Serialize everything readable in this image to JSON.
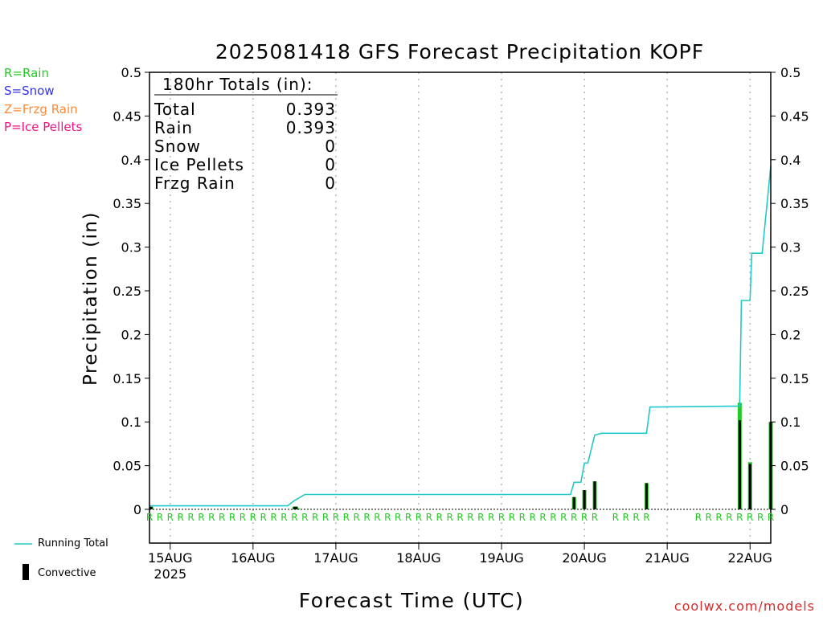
{
  "chart_data": {
    "type": "bar",
    "title": "2025081418 GFS Forecast Precipitation KOPF",
    "xlabel": "Forecast Time (UTC)",
    "ylabel": "Precipitation (in)",
    "ylim": [
      0,
      0.5
    ],
    "y_ticks": [
      0,
      0.05,
      0.1,
      0.15,
      0.2,
      0.25,
      0.3,
      0.35,
      0.4,
      0.45,
      0.5
    ],
    "y_tick_labels": [
      "0",
      "0.05",
      "0.1",
      "0.15",
      "0.2",
      "0.25",
      "0.3",
      "0.35",
      "0.4",
      "0.45",
      "0.5"
    ],
    "x_tick_labels": [
      "15AUG",
      "16AUG",
      "17AUG",
      "18AUG",
      "19AUG",
      "20AUG",
      "21AUG",
      "22AUG"
    ],
    "x_year_label": "2025",
    "x_unit": "forecast hour",
    "xlim": [
      0,
      180
    ],
    "x_day_ticks_hours": [
      6,
      30,
      54,
      78,
      102,
      126,
      150,
      174
    ],
    "grid": "dotted vertical lines at day ticks",
    "legend_keys": [
      {
        "label": "R=Rain",
        "color": "#22cc22"
      },
      {
        "label": "S=Snow",
        "color": "#3333ee"
      },
      {
        "label": "Z=Frzg Rain",
        "color": "#ff8833"
      },
      {
        "label": "P=Ice Pellets",
        "color": "#ee1188"
      }
    ],
    "totals_box": {
      "heading": "180hr Totals (in):",
      "rows": [
        {
          "label": "Total",
          "value": "0.393"
        },
        {
          "label": "Rain",
          "value": "0.393"
        },
        {
          "label": "Snow",
          "value": "0"
        },
        {
          "label": "Ice Pellets",
          "value": "0"
        },
        {
          "label": "Frzg Rain",
          "value": "0"
        }
      ]
    },
    "series": [
      {
        "name": "Running Total",
        "color": "#22c8c8",
        "x": [
          0,
          30,
          40,
          42,
          45,
          102,
          122,
          123,
          124,
          125,
          126,
          127,
          129,
          131,
          132,
          144,
          145,
          168,
          171,
          171.5,
          174,
          174.5,
          177,
          177.5,
          180
        ],
        "y": [
          0.004,
          0.004,
          0.004,
          0.01,
          0.017,
          0.017,
          0.017,
          0.031,
          0.031,
          0.031,
          0.053,
          0.053,
          0.085,
          0.087,
          0.087,
          0.087,
          0.117,
          0.118,
          0.118,
          0.239,
          0.239,
          0.293,
          0.293,
          0.293,
          0.393
        ]
      },
      {
        "name": "Rain",
        "color": "#22cc22",
        "x": [
          0.5,
          42,
          42.5,
          43,
          123,
          126,
          129,
          144,
          171,
          174,
          180
        ],
        "y": [
          0.003,
          0.003,
          0.003,
          0.001,
          0.014,
          0.022,
          0.032,
          0.03,
          0.122,
          0.054,
          0.1
        ]
      },
      {
        "name": "Convective",
        "color": "#000000",
        "x": [
          0.5,
          42,
          42.5,
          123,
          126,
          129,
          144,
          171,
          174,
          180
        ],
        "y": [
          0.003,
          0.003,
          0.003,
          0.014,
          0.022,
          0.032,
          0.03,
          0.102,
          0.052,
          0.1
        ]
      }
    ],
    "ptype_markers": {
      "letter": "R",
      "color": "#22cc22",
      "x": [
        0,
        3,
        6,
        9,
        12,
        15,
        18,
        21,
        24,
        27,
        30,
        33,
        36,
        39,
        42,
        45,
        48,
        51,
        54,
        57,
        60,
        63,
        66,
        69,
        72,
        75,
        78,
        81,
        84,
        87,
        90,
        93,
        96,
        99,
        102,
        105,
        108,
        111,
        114,
        117,
        120,
        123,
        126,
        129,
        135,
        138,
        141,
        144,
        159,
        162,
        165,
        168,
        171,
        174,
        177,
        180
      ]
    },
    "legend_bottom": {
      "running_total": "Running Total",
      "convective": "Convective"
    },
    "credit": "coolwx.com/models"
  }
}
